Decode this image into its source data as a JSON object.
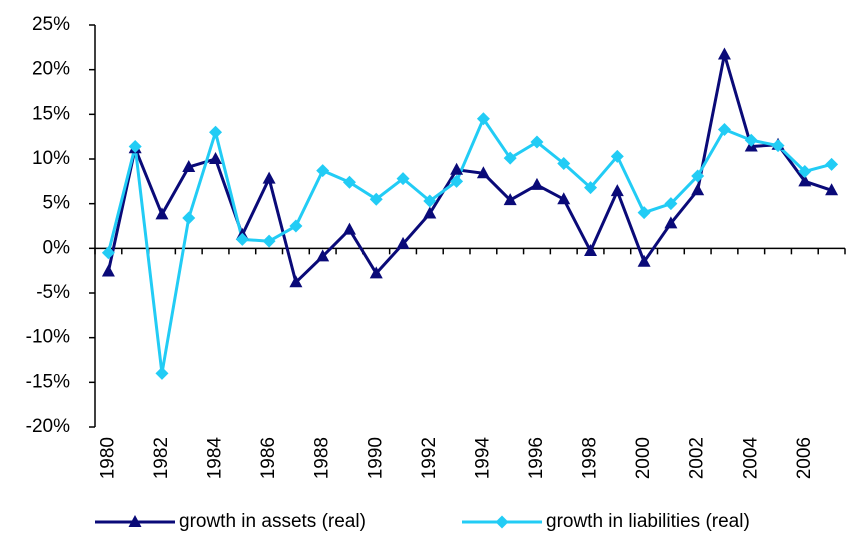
{
  "chart_data": {
    "type": "line",
    "categories": [
      "1980",
      null,
      "1982",
      null,
      "1984",
      null,
      "1986",
      null,
      "1988",
      null,
      "1990",
      null,
      "1992",
      null,
      "1994",
      null,
      "1996",
      null,
      "1998",
      null,
      "2000",
      null,
      "2002",
      null,
      "2004",
      null,
      "2006",
      null
    ],
    "series": [
      {
        "name": "growth in assets (real)",
        "color": "#0a0a78",
        "marker": "triangle",
        "values": [
          -2.6,
          11.2,
          3.8,
          9.1,
          10.0,
          1.5,
          7.8,
          -3.8,
          -0.9,
          2.1,
          -2.8,
          0.5,
          3.9,
          8.8,
          8.4,
          5.4,
          7.1,
          5.5,
          -0.3,
          6.4,
          -1.5,
          2.8,
          6.5,
          21.7,
          11.4,
          11.6,
          7.5,
          6.5
        ]
      },
      {
        "name": "growth in liabilities (real)",
        "color": "#22ccf5",
        "marker": "diamond",
        "values": [
          -0.5,
          11.4,
          -14.0,
          3.4,
          13.0,
          1.0,
          0.8,
          2.5,
          8.7,
          7.4,
          5.5,
          7.8,
          5.3,
          7.5,
          14.5,
          10.1,
          11.9,
          9.5,
          6.8,
          10.3,
          4.0,
          5.0,
          8.1,
          13.3,
          12.1,
          11.5,
          8.6,
          9.4
        ]
      }
    ],
    "ylim": [
      -20,
      25
    ],
    "yticks": [
      {
        "value": -20,
        "label": "-20%"
      },
      {
        "value": -15,
        "label": "-15%"
      },
      {
        "value": -10,
        "label": "-10%"
      },
      {
        "value": -5,
        "label": "-5%"
      },
      {
        "value": 0,
        "label": "0%"
      },
      {
        "value": 5,
        "label": "5%"
      },
      {
        "value": 10,
        "label": "10%"
      },
      {
        "value": 15,
        "label": "15%"
      },
      {
        "value": 20,
        "label": "20%"
      },
      {
        "value": 25,
        "label": "25%"
      }
    ],
    "grid": false,
    "legend": "bottom"
  }
}
